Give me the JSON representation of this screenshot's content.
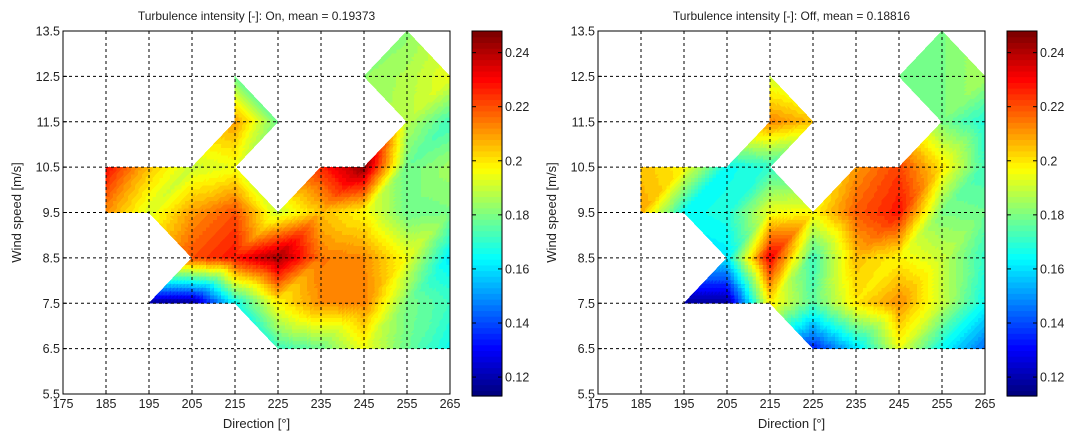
{
  "chart_data": [
    {
      "type": "heatmap",
      "subtype": "filled-contour",
      "title": "Turbulence intensity [-]: On, mean = 0.19373",
      "xlabel": "Direction [°]",
      "ylabel": "Wind speed [m/s]",
      "xlim": [
        175,
        265
      ],
      "ylim": [
        5.5,
        13.5
      ],
      "xticks": [
        175,
        185,
        195,
        205,
        215,
        225,
        235,
        245,
        255,
        265
      ],
      "xtick_labels": [
        "175",
        "185",
        "195",
        "205",
        "215",
        "225",
        "235",
        "245",
        "255",
        "265"
      ],
      "yticks": [
        5.5,
        6.5,
        7.5,
        8.5,
        9.5,
        10.5,
        11.5,
        12.5,
        13.5
      ],
      "ytick_labels": [
        "5.5",
        "6.5",
        "7.5",
        "8.5",
        "9.5",
        "10.5",
        "11.5",
        "12.5",
        "13.5"
      ],
      "grid": true,
      "x": [
        185,
        195,
        205,
        215,
        225,
        235,
        245,
        255,
        265
      ],
      "y": [
        6.5,
        7.5,
        8.5,
        9.5,
        10.5,
        11.5,
        12.5,
        13.5
      ],
      "z": [
        [
          null,
          null,
          null,
          null,
          0.172,
          0.178,
          0.195,
          0.178,
          0.165
        ],
        [
          null,
          0.118,
          0.118,
          0.165,
          0.198,
          0.212,
          0.213,
          0.18,
          0.172
        ],
        [
          null,
          null,
          0.22,
          0.228,
          0.243,
          0.215,
          0.212,
          0.195,
          0.162
        ],
        [
          0.212,
          0.192,
          0.21,
          0.22,
          0.19,
          0.205,
          0.197,
          0.178,
          0.18
        ],
        [
          0.23,
          0.205,
          0.19,
          0.195,
          null,
          0.225,
          0.245,
          0.178,
          0.185
        ],
        [
          null,
          null,
          null,
          0.21,
          0.178,
          null,
          null,
          0.188,
          0.172
        ],
        [
          null,
          null,
          null,
          0.178,
          null,
          null,
          0.183,
          0.187,
          0.195
        ],
        [
          null,
          null,
          null,
          null,
          null,
          null,
          null,
          0.182,
          null
        ]
      ],
      "colorbar": {
        "clim": [
          0.113,
          0.248
        ],
        "ticks": [
          0.12,
          0.14,
          0.16,
          0.18,
          0.2,
          0.22,
          0.24
        ],
        "tick_labels": [
          "0.12",
          "0.14",
          "0.16",
          "0.18",
          "0.2",
          "0.22",
          "0.24"
        ],
        "colormap": "jet"
      }
    },
    {
      "type": "heatmap",
      "subtype": "filled-contour",
      "title": "Turbulence intensity [-]: Off, mean = 0.18816",
      "xlabel": "Direction [°]",
      "ylabel": "Wind speed [m/s]",
      "xlim": [
        175,
        265
      ],
      "ylim": [
        5.5,
        13.5
      ],
      "xticks": [
        175,
        185,
        195,
        205,
        215,
        225,
        235,
        245,
        255,
        265
      ],
      "xtick_labels": [
        "175",
        "185",
        "195",
        "205",
        "215",
        "225",
        "235",
        "245",
        "255",
        "265"
      ],
      "yticks": [
        5.5,
        6.5,
        7.5,
        8.5,
        9.5,
        10.5,
        11.5,
        12.5,
        13.5
      ],
      "ytick_labels": [
        "5.5",
        "6.5",
        "7.5",
        "8.5",
        "9.5",
        "10.5",
        "11.5",
        "12.5",
        "13.5"
      ],
      "grid": true,
      "x": [
        185,
        195,
        205,
        215,
        225,
        235,
        245,
        255,
        265
      ],
      "y": [
        6.5,
        7.5,
        8.5,
        9.5,
        10.5,
        11.5,
        12.5,
        13.5
      ],
      "z": [
        [
          null,
          null,
          null,
          null,
          0.135,
          0.16,
          0.195,
          0.165,
          0.145
        ],
        [
          null,
          0.118,
          0.118,
          0.2,
          0.175,
          0.2,
          0.212,
          0.19,
          0.165
        ],
        [
          null,
          null,
          0.162,
          0.232,
          0.172,
          0.205,
          0.198,
          0.19,
          0.17
        ],
        [
          0.208,
          0.165,
          0.168,
          0.195,
          0.197,
          0.218,
          0.228,
          0.18,
          0.178
        ],
        [
          0.205,
          0.198,
          0.165,
          0.17,
          null,
          0.21,
          0.222,
          0.2,
          0.172
        ],
        [
          null,
          null,
          null,
          0.213,
          0.205,
          null,
          null,
          0.18,
          0.168
        ],
        [
          null,
          null,
          null,
          0.19,
          null,
          null,
          0.178,
          0.18,
          0.186
        ],
        [
          null,
          null,
          null,
          null,
          null,
          null,
          null,
          0.18,
          null
        ]
      ],
      "colorbar": {
        "clim": [
          0.113,
          0.248
        ],
        "ticks": [
          0.12,
          0.14,
          0.16,
          0.18,
          0.2,
          0.22,
          0.24
        ],
        "tick_labels": [
          "0.12",
          "0.14",
          "0.16",
          "0.18",
          "0.2",
          "0.22",
          "0.24"
        ],
        "colormap": "jet"
      }
    }
  ]
}
